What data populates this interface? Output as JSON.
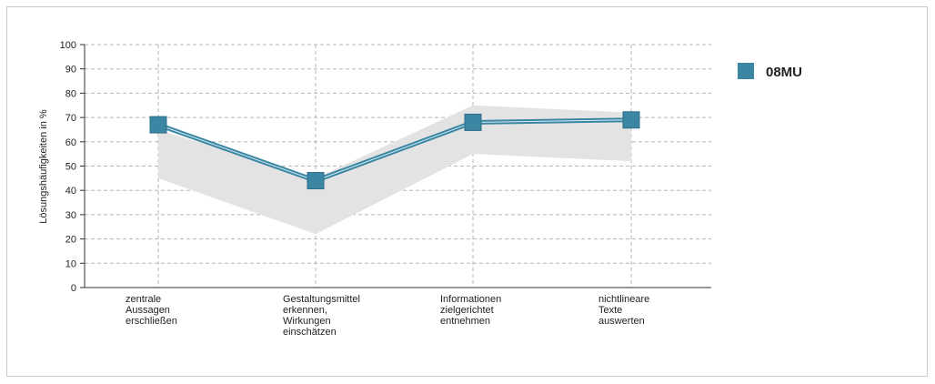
{
  "chart_data": {
    "type": "line",
    "title": "",
    "xlabel": "",
    "ylabel": "Lösungshäufigkeiten in %",
    "ylim": [
      0,
      100
    ],
    "yticks": [
      0,
      10,
      20,
      30,
      40,
      50,
      60,
      70,
      80,
      90,
      100
    ],
    "grid": true,
    "legend_position": "top-right",
    "categories": [
      [
        "zentrale",
        "Aussagen",
        "erschließen"
      ],
      [
        "Gestaltungsmittel",
        "erkennen,",
        "Wirkungen",
        "einschätzen"
      ],
      [
        "Informationen",
        "zielgerichtet",
        "entnehmen"
      ],
      [
        "nichtlineare",
        "Texte",
        "auswerten"
      ]
    ],
    "series": [
      {
        "name": "08MU",
        "color": "#3a86a3",
        "values": [
          67,
          44,
          68,
          69
        ]
      }
    ],
    "band": {
      "color": "#e3e3e3",
      "lower": [
        45,
        22,
        55,
        52
      ],
      "upper": [
        65,
        45,
        75,
        72
      ]
    }
  }
}
